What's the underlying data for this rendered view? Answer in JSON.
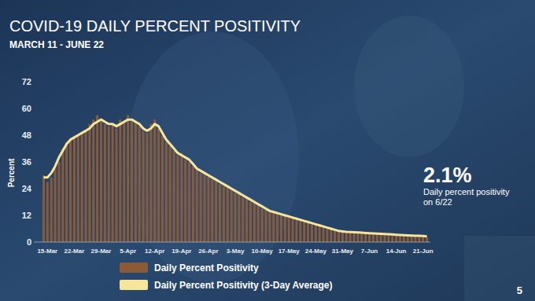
{
  "chart_data": {
    "type": "bar",
    "title": "COVID-19 DAILY PERCENT POSITIVITY",
    "subtitle": "MARCH 11 - JUNE 22",
    "y_label": "Percent",
    "annotation": {
      "value": 2.1,
      "label": "2.1%",
      "text": "Daily percent positivity on 6/22"
    },
    "page_number": 5,
    "categories": [
      null,
      "15-Mar",
      null,
      null,
      null,
      null,
      null,
      null,
      "22-Mar",
      null,
      null,
      null,
      null,
      null,
      null,
      "29-Mar",
      null,
      null,
      null,
      null,
      null,
      null,
      "5-Apr",
      null,
      null,
      null,
      null,
      null,
      null,
      "12-Apr",
      null,
      null,
      null,
      null,
      null,
      null,
      "19-Apr",
      null,
      null,
      null,
      null,
      null,
      null,
      "26-Apr",
      null,
      null,
      null,
      null,
      null,
      null,
      "3-May",
      null,
      null,
      null,
      null,
      null,
      null,
      "10-May",
      null,
      null,
      null,
      null,
      null,
      null,
      "17-May",
      null,
      null,
      null,
      null,
      null,
      null,
      "24-May",
      null,
      null,
      null,
      null,
      null,
      null,
      "31-May",
      null,
      null,
      null,
      null,
      null,
      null,
      "7-Jun",
      null,
      null,
      null,
      null,
      null,
      null,
      "14-Jun",
      null,
      null,
      null,
      null,
      null,
      null,
      "21-Jun",
      null
    ],
    "series": [
      {
        "name": "Daily Percent Positivity",
        "type": "bar",
        "color": "#8b5a36",
        "values": [
          30,
          27,
          29,
          33,
          36,
          42,
          45,
          46,
          47,
          48,
          49,
          50,
          53,
          55,
          57,
          54,
          53,
          52,
          53,
          51,
          55,
          54,
          57,
          54,
          54,
          52,
          50,
          49,
          53,
          55,
          51,
          48,
          45,
          43,
          41,
          39,
          40,
          37,
          36,
          34,
          33,
          31,
          31,
          30,
          28,
          28,
          26,
          25,
          25,
          24,
          22,
          22,
          20,
          20,
          18,
          18,
          17,
          15,
          15,
          14,
          13,
          13,
          12,
          12,
          11,
          11,
          10,
          10,
          9,
          9,
          8,
          8,
          7,
          7,
          6,
          6,
          5,
          5,
          5,
          4.5,
          4.6,
          4.3,
          4.4,
          4.1,
          4.2,
          3.9,
          4,
          3.7,
          3.8,
          3.5,
          3.6,
          3.3,
          3.4,
          3.1,
          3.2,
          2.9,
          3,
          2.7,
          2.9,
          2.8,
          2.1
        ]
      },
      {
        "name": "Daily Percent Positivity (3-Day Average)",
        "type": "line",
        "color": "#f7e59c",
        "values": [
          29,
          29,
          31,
          34,
          38,
          41,
          44,
          46,
          47,
          48,
          49,
          50,
          51,
          53,
          54,
          55,
          54,
          53,
          53,
          52,
          53,
          54,
          55,
          55,
          54,
          53,
          51,
          50,
          51,
          53,
          52,
          49,
          46,
          44,
          42,
          40,
          39,
          38,
          37,
          35,
          33,
          32,
          31,
          30,
          29,
          28,
          27,
          26,
          25,
          24,
          23,
          22,
          21,
          20,
          19,
          18,
          17,
          16,
          15,
          14,
          13.5,
          13,
          12.5,
          12,
          11.5,
          11,
          10.5,
          10,
          9.5,
          9,
          8.5,
          8,
          7.5,
          7,
          6.5,
          6,
          5.5,
          5,
          4.8,
          4.6,
          4.5,
          4.4,
          4.3,
          4.2,
          4.1,
          4,
          3.9,
          3.8,
          3.7,
          3.6,
          3.5,
          3.4,
          3.3,
          3.2,
          3.1,
          3,
          2.9,
          2.8,
          2.8,
          2.7,
          2.6
        ]
      }
    ],
    "ylim": [
      0,
      72
    ],
    "yticks": [
      0,
      12,
      24,
      36,
      48,
      60,
      72
    ],
    "grid": false,
    "legend": "bottom"
  }
}
